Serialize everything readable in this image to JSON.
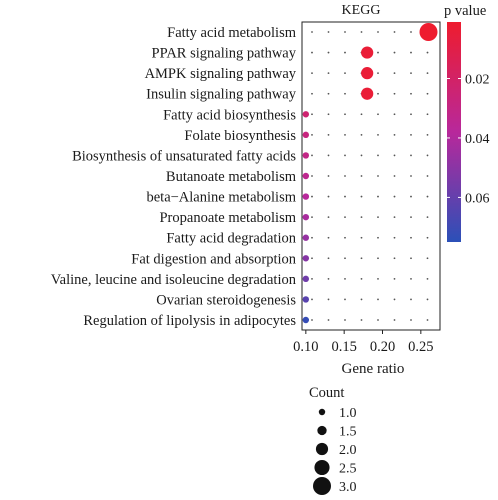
{
  "chart_data": {
    "type": "scatter",
    "title": "KEGG",
    "xlabel": "Gene ratio",
    "ylabel": "",
    "xlim": [
      0.095,
      0.275
    ],
    "x_ticks": [
      "0.10",
      "0.15",
      "0.20",
      "0.25"
    ],
    "x_tick_values": [
      0.1,
      0.15,
      0.2,
      0.25
    ],
    "categories": [
      "Fatty acid metabolism",
      "PPAR signaling pathway",
      "AMPK signaling pathway",
      "Insulin signaling pathway",
      "Fatty acid biosynthesis",
      "Folate biosynthesis",
      "Biosynthesis of unsaturated fatty acids",
      "Butanoate metabolism",
      "beta−Alanine metabolism",
      "Propanoate metabolism",
      "Fatty acid degradation",
      "Fat digestion and absorption",
      "Valine, leucine and isoleucine degradation",
      "Ovarian steroidogenesis",
      "Regulation of lipolysis in adipocytes"
    ],
    "gene_ratio": [
      0.26,
      0.18,
      0.18,
      0.18,
      0.1,
      0.1,
      0.1,
      0.1,
      0.1,
      0.1,
      0.1,
      0.1,
      0.1,
      0.1,
      0.1
    ],
    "count": [
      3,
      2,
      2,
      2,
      1,
      1,
      1,
      1,
      1,
      1,
      1,
      1,
      1,
      1,
      1
    ],
    "p_value": [
      0.001,
      0.004,
      0.004,
      0.004,
      0.023,
      0.028,
      0.031,
      0.034,
      0.038,
      0.042,
      0.047,
      0.051,
      0.057,
      0.063,
      0.072
    ],
    "color_scale": {
      "title": "p value",
      "ticks": [
        "0.02",
        "0.04",
        "0.06"
      ],
      "tick_values": [
        0.02,
        0.04,
        0.06
      ],
      "range": [
        0.001,
        0.075
      ],
      "low_color": "#ee1c2e",
      "mid_color": "#b8289b",
      "high_color": "#2b50b8"
    },
    "size_legend": {
      "title": "Count",
      "values": [
        1.0,
        1.5,
        2.0,
        2.5,
        3.0
      ],
      "labels": [
        "1.0",
        "1.5",
        "2.0",
        "2.5",
        "3.0"
      ]
    },
    "grid": "dotted",
    "legend_position": "right"
  }
}
